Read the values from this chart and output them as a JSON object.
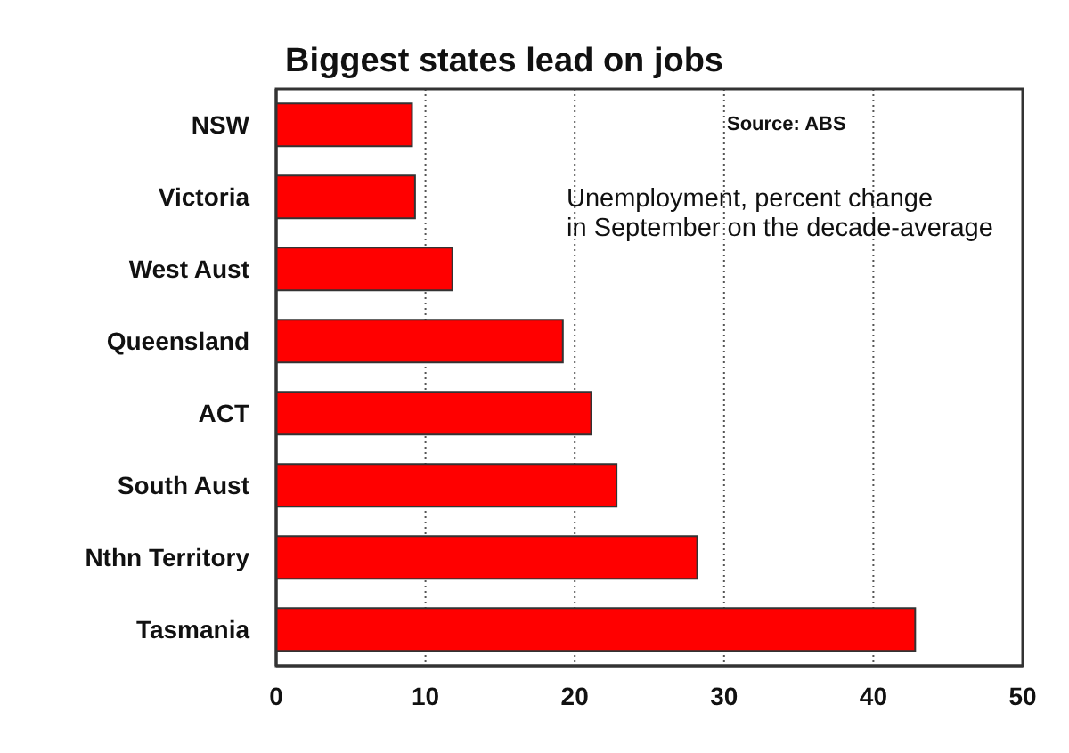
{
  "chart_data": {
    "type": "bar",
    "orientation": "horizontal",
    "title": "Biggest states lead on jobs",
    "annotations": [
      "Source: ABS",
      "Unemployment, percent change\nin September on the decade-average"
    ],
    "categories": [
      "NSW",
      "Victoria",
      "West Aust",
      "Queensland",
      "ACT",
      "South Aust",
      "Nthn Territory",
      "Tasmania"
    ],
    "values": [
      9.1,
      9.3,
      11.8,
      19.2,
      21.1,
      22.8,
      28.2,
      42.8
    ],
    "color": "#ff0000",
    "xlim": [
      0,
      50
    ],
    "xticks": [
      0,
      10,
      20,
      30,
      40,
      50
    ],
    "grid": "x",
    "legend": false
  }
}
